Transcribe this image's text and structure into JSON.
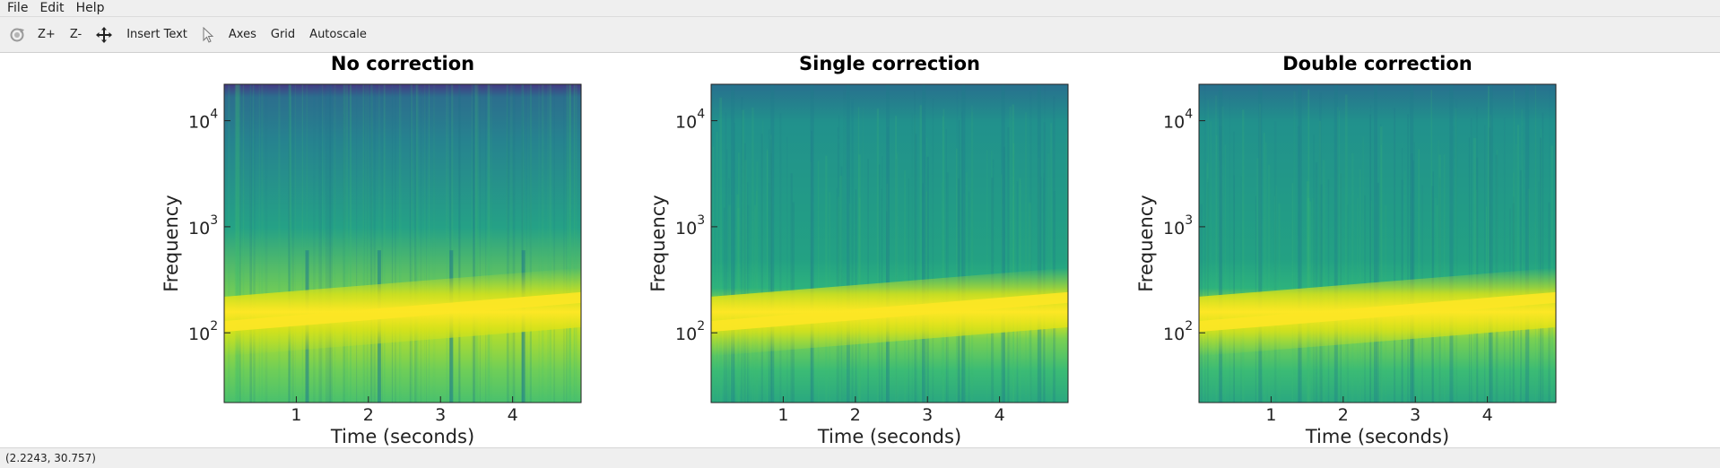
{
  "menu": {
    "items": [
      "File",
      "Edit",
      "Help"
    ]
  },
  "toolbar": {
    "zoom_in": "Z+",
    "zoom_out": "Z-",
    "insert_text": "Insert Text",
    "axes": "Axes",
    "grid": "Grid",
    "autoscale": "Autoscale",
    "icons": [
      "rotate-icon",
      "pan-icon",
      "select-pointer-icon"
    ]
  },
  "status": {
    "coordinates": "(2.2243, 30.757)"
  },
  "colors": {
    "viridis_dark": "#443983",
    "viridis_mid": "#21918c",
    "viridis_light": "#5ec962",
    "viridis_yellow": "#fde725"
  },
  "chart_data": [
    {
      "type": "heatmap",
      "title": "No correction",
      "xlabel": "Time (seconds)",
      "ylabel": "Frequency",
      "xticks": [
        "1",
        "2",
        "3",
        "4"
      ],
      "yticks": [
        "10",
        "10",
        "10"
      ],
      "ytick_exponents": [
        "4",
        "3",
        "2"
      ],
      "xlim": [
        0,
        4.95
      ],
      "ylim": [
        22,
        22050
      ],
      "yscale": "log",
      "grid": false,
      "colormap": "viridis",
      "fundamental_hz": {
        "t": [
          0,
          4.95
        ],
        "f": [
          115,
          215
        ]
      },
      "segment_boundaries_s": [
        1.15,
        2.15,
        3.15,
        4.15
      ]
    },
    {
      "type": "heatmap",
      "title": "Single correction",
      "xlabel": "Time (seconds)",
      "ylabel": "Frequency",
      "xticks": [
        "1",
        "2",
        "3",
        "4"
      ],
      "yticks": [
        "10",
        "10",
        "10"
      ],
      "ytick_exponents": [
        "4",
        "3",
        "2"
      ],
      "xlim": [
        0,
        4.95
      ],
      "ylim": [
        22,
        22050
      ],
      "yscale": "log",
      "grid": false,
      "colormap": "viridis",
      "fundamental_hz": {
        "t": [
          0,
          4.95
        ],
        "f": [
          115,
          215
        ]
      },
      "segment_boundaries_s": [
        0.3,
        0.85,
        1.4,
        1.9,
        2.45,
        2.95,
        3.5,
        4.05,
        4.55
      ]
    },
    {
      "type": "heatmap",
      "title": "Double correction",
      "xlabel": "Time (seconds)",
      "ylabel": "Frequency",
      "xticks": [
        "1",
        "2",
        "3",
        "4"
      ],
      "yticks": [
        "10",
        "10",
        "10"
      ],
      "ytick_exponents": [
        "4",
        "3",
        "2"
      ],
      "xlim": [
        0,
        4.95
      ],
      "ylim": [
        22,
        22050
      ],
      "yscale": "log",
      "grid": false,
      "colormap": "viridis",
      "fundamental_hz": {
        "t": [
          0,
          4.95
        ],
        "f": [
          115,
          215
        ]
      },
      "segment_boundaries_s": [
        0.3,
        0.85,
        1.4,
        1.9,
        2.45,
        2.95,
        3.5,
        4.05,
        4.55
      ]
    }
  ]
}
